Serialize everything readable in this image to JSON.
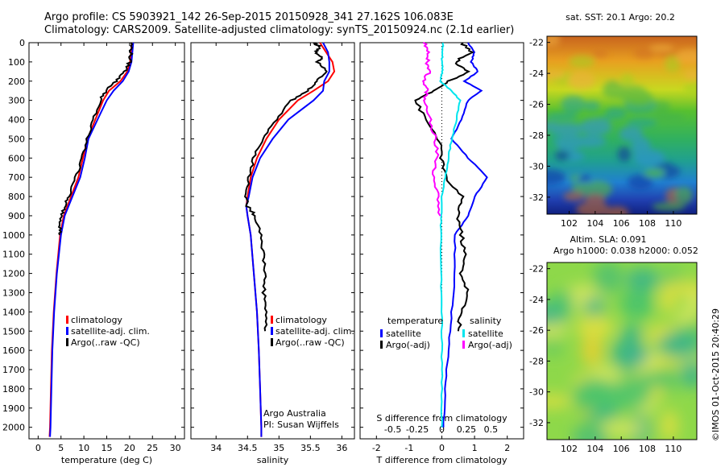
{
  "header": {
    "line1": "Argo profile: CS 5903921_142 26-Sep-2015 20150928_341 27.162S 106.083E",
    "line2": "Climatology: CARS2009. Satellite-adjusted climatology: synTS_20150924.nc (2.1d earlier)"
  },
  "colors": {
    "climatology": "#ff0000",
    "satellite": "#0000ff",
    "argo": "#000000",
    "sal_satellite": "#00e5ee",
    "sal_argo": "#ff00ff"
  },
  "chart_data": [
    {
      "type": "line",
      "xlabel": "temperature (deg C)",
      "ylabel": "",
      "xlim": [
        -2,
        32
      ],
      "ylim": [
        2060,
        0
      ],
      "xticks": [
        0,
        5,
        10,
        15,
        20,
        25,
        30
      ],
      "yticks": [
        0,
        100,
        200,
        300,
        400,
        500,
        600,
        700,
        800,
        900,
        1000,
        1100,
        1200,
        1300,
        1400,
        1500,
        1600,
        1700,
        1800,
        1900,
        2000
      ],
      "legend": [
        "climatology",
        "satellite-adj. clim.",
        "Argo(..raw -QC)"
      ],
      "series": [
        {
          "name": "climatology",
          "depth": [
            0,
            50,
            100,
            150,
            200,
            250,
            300,
            400,
            500,
            600,
            700,
            800,
            900,
            1000,
            1200,
            1400,
            1600,
            1800,
            2000,
            2050
          ],
          "values": [
            20.5,
            20.3,
            20.1,
            19.5,
            18,
            15.5,
            14.2,
            12.5,
            10.8,
            9.8,
            8.8,
            7.2,
            5.6,
            4.8,
            4.0,
            3.4,
            3.0,
            2.8,
            2.6,
            2.5
          ]
        },
        {
          "name": "satellite-adj. clim.",
          "depth": [
            0,
            50,
            100,
            150,
            200,
            250,
            300,
            400,
            500,
            600,
            700,
            800,
            900,
            1000,
            1200,
            1400,
            1600,
            1800,
            2000,
            2050
          ],
          "values": [
            20.8,
            20.6,
            20.4,
            19.8,
            18.5,
            16.5,
            15,
            13,
            11,
            10.2,
            9.2,
            7.5,
            5.8,
            5,
            4.1,
            3.5,
            3.1,
            2.9,
            2.7,
            2.6
          ]
        },
        {
          "name": "Argo(..raw -QC)",
          "depth": [
            0,
            50,
            100,
            150,
            200,
            250,
            300,
            400,
            500,
            600,
            700,
            800,
            850,
            900,
            950,
            1000
          ],
          "values": [
            20.4,
            20.3,
            20.0,
            19.0,
            17.0,
            14.8,
            13.6,
            12.0,
            10.7,
            9.6,
            8.3,
            6.6,
            5.8,
            5.2,
            4.9,
            4.7
          ]
        }
      ]
    },
    {
      "type": "line",
      "xlabel": "salinity",
      "ylabel": "",
      "xlim": [
        33.6,
        36.2
      ],
      "ylim": [
        2060,
        0
      ],
      "xticks": [
        34,
        34.5,
        35,
        35.5,
        36
      ],
      "legend": [
        "climatology",
        "satellite-adj. clim.",
        "Argo(..raw -QC)"
      ],
      "annotation": [
        "Argo Australia",
        "PI: Susan Wijffels"
      ],
      "series": [
        {
          "name": "climatology",
          "depth": [
            0,
            50,
            100,
            150,
            200,
            250,
            300,
            400,
            500,
            600,
            700,
            800,
            850,
            900,
            1000,
            1200,
            1400,
            1600,
            1800,
            2000,
            2050
          ],
          "values": [
            35.65,
            35.75,
            35.85,
            35.88,
            35.78,
            35.55,
            35.3,
            35.0,
            34.8,
            34.65,
            34.55,
            34.5,
            34.48,
            34.5,
            34.55,
            34.6,
            34.65,
            34.68,
            34.7,
            34.72,
            34.72
          ]
        },
        {
          "name": "satellite-adj. clim.",
          "depth": [
            0,
            50,
            100,
            150,
            200,
            250,
            300,
            400,
            500,
            600,
            700,
            800,
            850,
            900,
            1000,
            1200,
            1400,
            1600,
            1800,
            2000,
            2050
          ],
          "values": [
            35.7,
            35.78,
            35.8,
            35.8,
            35.72,
            35.7,
            35.55,
            35.15,
            34.9,
            34.7,
            34.58,
            34.52,
            34.48,
            34.5,
            34.55,
            34.6,
            34.65,
            34.68,
            34.7,
            34.72,
            34.72
          ]
        },
        {
          "name": "Argo(..raw -QC)",
          "depth": [
            0,
            20,
            50,
            80,
            100,
            150,
            200,
            250,
            300,
            400,
            500,
            600,
            700,
            800,
            850,
            900,
            1000,
            1100,
            1200,
            1300,
            1400,
            1500
          ],
          "values": [
            35.55,
            35.65,
            35.58,
            35.7,
            35.62,
            35.78,
            35.6,
            35.45,
            35.2,
            34.95,
            34.75,
            34.6,
            34.52,
            34.48,
            34.5,
            34.62,
            34.72,
            34.75,
            34.78,
            34.76,
            34.8,
            34.78
          ]
        }
      ]
    },
    {
      "type": "line",
      "xlabel": "T difference from climatology",
      "xlabel2": "S difference from climatology",
      "xlim": [
        -2.5,
        2.5
      ],
      "ylim": [
        2060,
        0
      ],
      "xticks": [
        -2,
        -1,
        0,
        1,
        2
      ],
      "xticks_s": [
        "-0.5",
        "-0.25",
        "0",
        "0.25",
        "0.5"
      ],
      "legend_headers": [
        "temperature",
        "salinity"
      ],
      "legend": [
        "satellite",
        "Argo(-adj)",
        "satellite",
        "Argo(-adj)"
      ],
      "series": [
        {
          "name": "temperature satellite",
          "depth": [
            0,
            50,
            100,
            150,
            200,
            250,
            300,
            400,
            500,
            600,
            700,
            800,
            900,
            1000,
            1200,
            1400,
            1600,
            1800,
            2000
          ],
          "values": [
            0.8,
            1.0,
            0.9,
            1.1,
            0.7,
            1.2,
            0.8,
            0.6,
            0.3,
            0.8,
            1.4,
            1.0,
            0.8,
            0.4,
            0.4,
            0.3,
            0.2,
            0.1,
            0.05
          ]
        },
        {
          "name": "temperature Argo(-adj)",
          "depth": [
            0,
            50,
            100,
            150,
            200,
            250,
            300,
            400,
            500,
            600,
            700,
            800,
            900,
            1000,
            1100,
            1200,
            1300,
            1400,
            1500
          ],
          "values": [
            0.6,
            0.9,
            0.4,
            0.8,
            0.2,
            -0.2,
            -0.8,
            -0.5,
            -0.1,
            0,
            0.1,
            0.6,
            0.5,
            0.6,
            0.7,
            0.6,
            0.8,
            0.6,
            0.5
          ]
        },
        {
          "name": "salinity satellite",
          "depth": [
            0,
            50,
            100,
            150,
            200,
            250,
            300,
            400,
            500,
            600,
            700,
            800,
            900,
            1000,
            1200,
            1400,
            1600,
            1800,
            2000
          ],
          "values": [
            0.05,
            0.02,
            0.0,
            0.02,
            -0.05,
            0.3,
            0.55,
            0.45,
            0.3,
            0.2,
            0.1,
            0.0,
            -0.02,
            -0.03,
            -0.02,
            0.0,
            0.0,
            0.0,
            0.0
          ]
        },
        {
          "name": "salinity Argo(-adj)",
          "depth": [
            0,
            50,
            100,
            150,
            200,
            250,
            300,
            400,
            500,
            600,
            700,
            800,
            900
          ],
          "values": [
            -0.55,
            -0.4,
            -0.45,
            -0.35,
            -0.6,
            -0.45,
            -0.55,
            -0.35,
            -0.2,
            -0.15,
            -0.25,
            -0.1,
            -0.05
          ]
        }
      ]
    }
  ],
  "maps": [
    {
      "title": "sat. SST: 20.1  Argo: 20.2",
      "yticks": [
        "-22",
        "-24",
        "-26",
        "-28",
        "-30",
        "-32"
      ],
      "xticks": [
        "102",
        "104",
        "106",
        "108",
        "110"
      ]
    },
    {
      "title_line1": "Altim. SLA: 0.091",
      "title_line2": "Argo h1000: 0.038 h2000: 0.052",
      "yticks": [
        "-22",
        "-24",
        "-26",
        "-28",
        "-30",
        "-32"
      ],
      "xticks": [
        "102",
        "104",
        "106",
        "108",
        "110"
      ]
    }
  ],
  "footer": {
    "imos_stamp": "©IMOS 01-Oct-2015 20:40:29"
  }
}
